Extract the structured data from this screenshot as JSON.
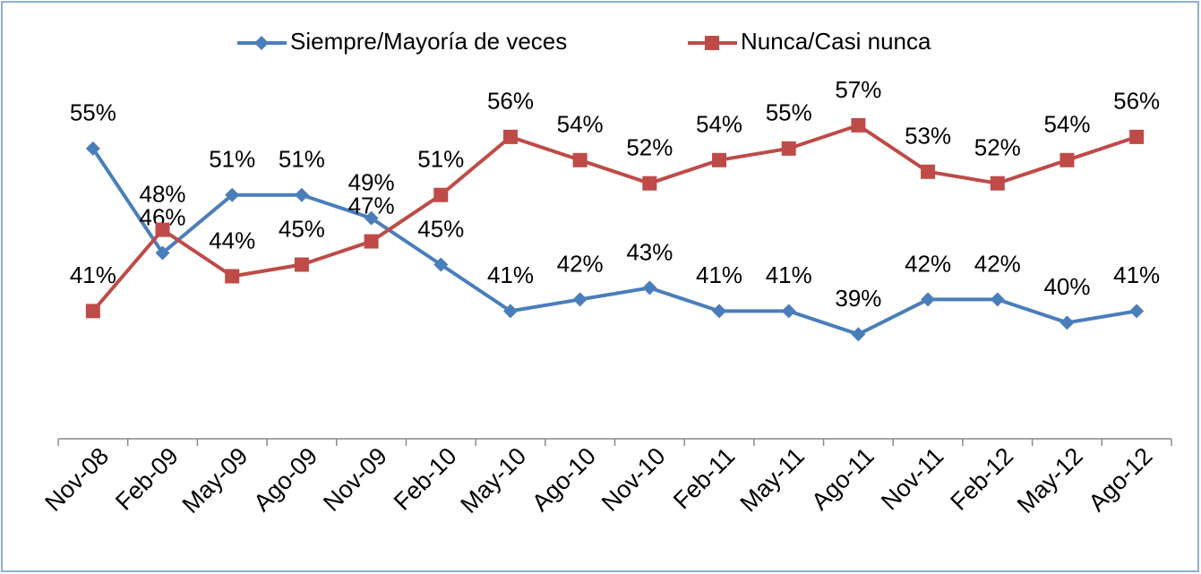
{
  "chart_data": {
    "type": "line",
    "categories": [
      "Nov-08",
      "Feb-09",
      "May-09",
      "Ago-09",
      "Nov-09",
      "Feb-10",
      "May-10",
      "Ago-10",
      "Nov-10",
      "Feb-11",
      "May-11",
      "Ago-11",
      "Nov-11",
      "Feb-12",
      "May-12",
      "Ago-12"
    ],
    "series": [
      {
        "name": "Siempre/Mayoría de veces",
        "color": "#4a7ebb",
        "marker": "diamond",
        "values": [
          55,
          46,
          51,
          51,
          49,
          45,
          41,
          42,
          43,
          41,
          41,
          39,
          42,
          42,
          40,
          41
        ],
        "value_labels": [
          "55%",
          "46%",
          "51%",
          "51%",
          "49%",
          "45%",
          "41%",
          "42%",
          "43%",
          "41%",
          "41%",
          "39%",
          "42%",
          "42%",
          "40%",
          "41%"
        ]
      },
      {
        "name": "Nunca/Casi nunca",
        "color": "#be4b48",
        "marker": "square",
        "values": [
          41,
          48,
          44,
          45,
          47,
          51,
          56,
          54,
          52,
          54,
          55,
          57,
          53,
          52,
          54,
          56
        ],
        "value_labels": [
          "41%",
          "48%",
          "44%",
          "45%",
          "47%",
          "51%",
          "56%",
          "54%",
          "52%",
          "54%",
          "55%",
          "57%",
          "53%",
          "52%",
          "54%",
          "56%"
        ]
      }
    ],
    "ylim": [
      30,
      60
    ],
    "grid": false,
    "legend": "top"
  }
}
